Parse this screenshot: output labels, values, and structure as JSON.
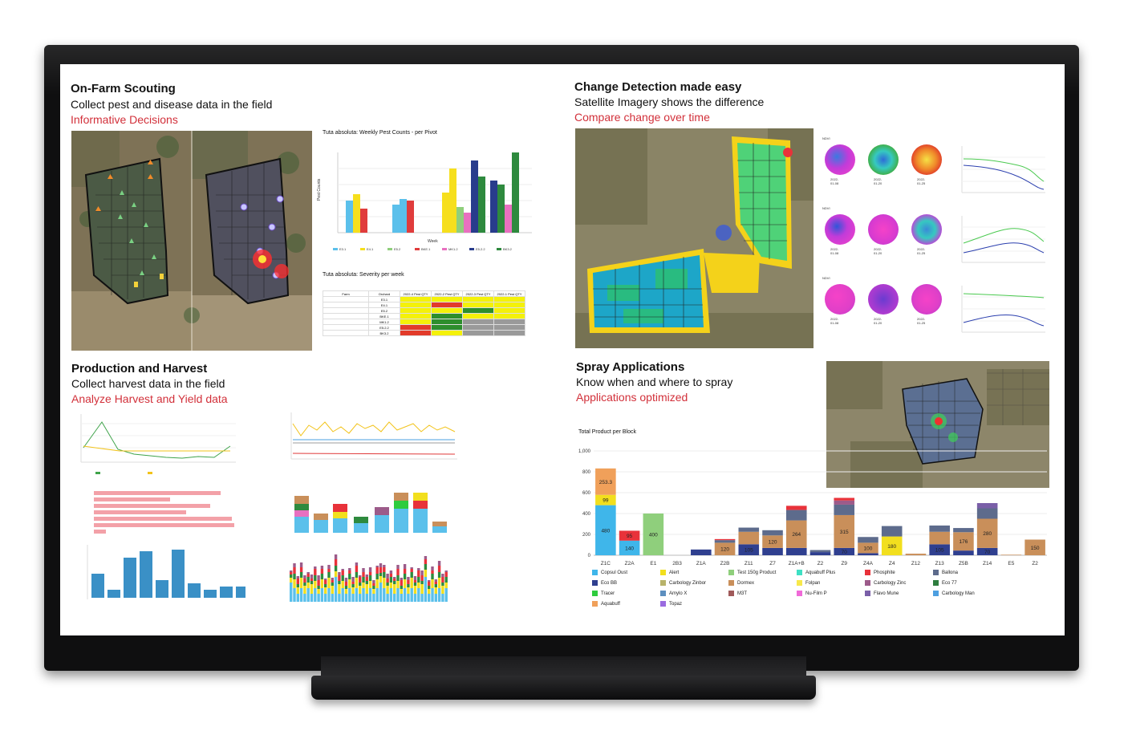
{
  "sections": {
    "scouting": {
      "title": "On-Farm Scouting",
      "subtitle": "Collect pest and disease data in the field",
      "tagline": "Informative Decisions"
    },
    "change": {
      "title": "Change Detection made easy",
      "subtitle": "Satellite Imagery shows the difference",
      "tagline": "Compare change over time"
    },
    "harvest": {
      "title": "Production and Harvest",
      "subtitle": "Collect harvest data in the field",
      "tagline": "Analyze Harvest and Yield data"
    },
    "spray": {
      "title": "Spray Applications",
      "subtitle": "Know when and where to spray",
      "tagline": "Applications optimized"
    }
  },
  "pest_chart": {
    "title": "Tuta absoluta: Weekly Pest Counts - per Pivot",
    "xlabel": "Week",
    "ylabel": "Pest Counts",
    "legend": [
      "E3.1",
      "E4.1",
      "E5.2",
      "BKE.1",
      "MK1.2",
      "E5.2.2",
      "BK3.2"
    ]
  },
  "severity": {
    "title": "Tuta absoluta: Severity per week",
    "headers": [
      "Farm",
      "Orchard",
      "2022-4 Pest QTY",
      "2022-2 Pest QTY",
      "2022-3 Pest QTY",
      "2022-1 Pest QTY"
    ],
    "rows": [
      "E3.1",
      "E4.1",
      "E5.2",
      "BKE.1",
      "MK1.2",
      "E5.2.2",
      "BK3.2"
    ]
  },
  "ndvi": {
    "label": "NDVI",
    "rows": [
      {
        "dates": [
          "2022-01-08",
          "2022-01-20",
          "2022-01-25"
        ]
      },
      {
        "dates": [
          "2022-01-08",
          "2022-01-20",
          "2022-01-25"
        ]
      },
      {
        "dates": [
          "2022-01-08",
          "2022-01-20",
          "2022-01-25"
        ]
      }
    ]
  },
  "chart_data": [
    {
      "type": "bar",
      "title": "Total Product per Block",
      "categories": [
        "Z1C",
        "Z2A",
        "E1",
        "2B3",
        "Z1A",
        "Z2B",
        "Z11",
        "Z7",
        "Z1A+B",
        "Z2",
        "Z9",
        "Z4A",
        "Z4",
        "Z12",
        "Z13",
        "Z5B",
        "Z14",
        "E5",
        "Z2"
      ],
      "ylim": [
        0,
        1000
      ],
      "yticks": [
        "0",
        "200",
        "400",
        "600",
        "800",
        "1,000"
      ],
      "stacks": [
        [
          {
            "p": "Copsul Oust",
            "v": 480
          },
          {
            "p": "Alert",
            "v": 99
          },
          {
            "p": "Aquabuff",
            "v": 253.3
          }
        ],
        [
          {
            "p": "Copsul Oust",
            "v": 140
          },
          {
            "p": "Phosphite",
            "v": 95
          }
        ],
        [
          {
            "p": "Test 150g Product",
            "v": 400
          }
        ],
        [],
        [
          {
            "p": "Eco BB",
            "v": 55
          }
        ],
        [
          {
            "p": "Dormex",
            "v": 120
          },
          {
            "p": "Ballona",
            "v": 25
          },
          {
            "p": "Phosphite",
            "v": 10
          }
        ],
        [
          {
            "p": "Eco BB",
            "v": 105
          },
          {
            "p": "Dormex",
            "v": 120
          },
          {
            "p": "Ballona",
            "v": 40
          }
        ],
        [
          {
            "p": "Eco BB",
            "v": 70
          },
          {
            "p": "Dormex",
            "v": 120
          },
          {
            "p": "Ballona",
            "v": 50
          }
        ],
        [
          {
            "p": "Eco BB",
            "v": 70
          },
          {
            "p": "Dormex",
            "v": 264
          },
          {
            "p": "Ballona",
            "v": 100
          },
          {
            "p": "Phosphite",
            "v": 40
          }
        ],
        [
          {
            "p": "Eco BB",
            "v": 30
          },
          {
            "p": "Ballona",
            "v": 20
          }
        ],
        [
          {
            "p": "Eco BB",
            "v": 70
          },
          {
            "p": "Dormex",
            "v": 315
          },
          {
            "p": "Ballona",
            "v": 100
          },
          {
            "p": "Carbology Zinc",
            "v": 40
          },
          {
            "p": "Phosphite",
            "v": 25
          }
        ],
        [
          {
            "p": "Eco BB",
            "v": 20
          },
          {
            "p": "Dormex",
            "v": 100
          },
          {
            "p": "Ballona",
            "v": 55
          }
        ],
        [
          {
            "p": "Alert",
            "v": 180
          },
          {
            "p": "Ballona",
            "v": 100
          }
        ],
        [
          {
            "p": "Dormex",
            "v": 15
          }
        ],
        [
          {
            "p": "Eco BB",
            "v": 105
          },
          {
            "p": "Dormex",
            "v": 120
          },
          {
            "p": "Ballona",
            "v": 60
          }
        ],
        [
          {
            "p": "Eco BB",
            "v": 45
          },
          {
            "p": "Dormex",
            "v": 176
          },
          {
            "p": "Ballona",
            "v": 40
          }
        ],
        [
          {
            "p": "Eco BB",
            "v": 70
          },
          {
            "p": "Dormex",
            "v": 280
          },
          {
            "p": "Ballona",
            "v": 100
          },
          {
            "p": "Flavo Mune",
            "v": 50
          }
        ],
        [
          {
            "p": "Dormex",
            "v": 5
          }
        ],
        [
          {
            "p": "Dormex",
            "v": 150
          }
        ]
      ],
      "labels": [
        [
          {
            "v": "480",
            "i": 0
          },
          {
            "v": "99",
            "i": 1
          },
          {
            "v": "253.3",
            "i": 2
          }
        ],
        [
          {
            "v": "140",
            "i": 0
          },
          {
            "v": "95",
            "i": 1
          }
        ],
        [
          {
            "v": "400",
            "i": 0
          }
        ],
        [],
        [],
        [
          {
            "v": "120",
            "i": 0
          }
        ],
        [
          {
            "v": "105",
            "i": 0
          }
        ],
        [
          {
            "v": "120",
            "i": 1
          }
        ],
        [
          {
            "v": "264",
            "i": 1
          }
        ],
        [],
        [
          {
            "v": "70",
            "i": 0
          },
          {
            "v": "315",
            "i": 1
          }
        ],
        [
          {
            "v": "100",
            "i": 1
          }
        ],
        [
          {
            "v": "180",
            "i": 0
          }
        ],
        [],
        [
          {
            "v": "105",
            "i": 0
          }
        ],
        [
          {
            "v": "176",
            "i": 1
          }
        ],
        [
          {
            "v": "70",
            "i": 0
          },
          {
            "v": "280",
            "i": 1
          }
        ],
        [],
        [
          {
            "v": "150",
            "i": 0
          }
        ]
      ]
    }
  ],
  "products": [
    {
      "name": "Copsul Oust",
      "color": "#3fb6ea"
    },
    {
      "name": "Alert",
      "color": "#f2df1e"
    },
    {
      "name": "Test 150g Product",
      "color": "#8fcf7c"
    },
    {
      "name": "Aquabuff Plus",
      "color": "#3ee0c4"
    },
    {
      "name": "Phosphite",
      "color": "#e8323a"
    },
    {
      "name": "Ballona",
      "color": "#5d6b8c"
    },
    {
      "name": "Eco BB",
      "color": "#2f3f8f"
    },
    {
      "name": "Carbology Zinbor",
      "color": "#b8b36a"
    },
    {
      "name": "Dormex",
      "color": "#c98f5a"
    },
    {
      "name": "Folpan",
      "color": "#f7e84a"
    },
    {
      "name": "Carbology Zinc",
      "color": "#9c5b8a"
    },
    {
      "name": "Eco 77",
      "color": "#2e7d3f"
    },
    {
      "name": "Tracer",
      "color": "#2ecc3e"
    },
    {
      "name": "Amylo X",
      "color": "#5d8fbf"
    },
    {
      "name": "M3T",
      "color": "#a05a5a"
    },
    {
      "name": "Nu-Film P",
      "color": "#f06ad8"
    },
    {
      "name": "Flavo Mune",
      "color": "#7a5fa8"
    },
    {
      "name": "Carbology Man",
      "color": "#4d9fe0"
    },
    {
      "name": "Aquabuff",
      "color": "#f0a05a"
    },
    {
      "name": "Topaz",
      "color": "#9a6be0"
    }
  ]
}
